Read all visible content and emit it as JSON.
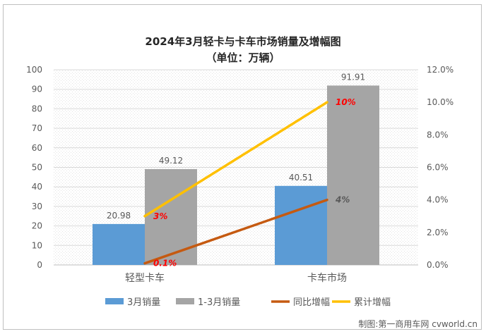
{
  "title_line1": "2024年3月轻卡与卡车市场销量及增幅图",
  "title_line2": "（单位：万辆）",
  "watermark": "制图:第一商用车网 cvworld.cn",
  "colors": {
    "march_sales": "#5b9bd5",
    "ytd_sales": "#a5a5a5",
    "yoy_growth": "#c55a11",
    "ytd_growth": "#ffc000",
    "growth_label": "#ff0000",
    "grid": "#d9d9d9",
    "axis_text": "#595959"
  },
  "chart_data": {
    "type": "bar",
    "categories": [
      "轻型卡车",
      "卡车市场"
    ],
    "bar_series": [
      {
        "name": "3月销量",
        "values": [
          20.98,
          40.51
        ],
        "labels": [
          "20.98",
          "40.51"
        ],
        "color_key": "march_sales"
      },
      {
        "name": "1-3月销量",
        "values": [
          49.12,
          91.91
        ],
        "labels": [
          "49.12",
          "91.91"
        ],
        "color_key": "ytd_sales"
      }
    ],
    "line_series": [
      {
        "name": "同比增幅",
        "values": [
          0.1,
          4
        ],
        "labels": [
          "0.1%",
          "4%"
        ],
        "color_key": "yoy_growth"
      },
      {
        "name": "累计增幅",
        "values": [
          3,
          10
        ],
        "labels": [
          "3%",
          "10%"
        ],
        "color_key": "ytd_growth"
      }
    ],
    "y_left": {
      "min": 0,
      "max": 100,
      "ticks": [
        "0",
        "10",
        "20",
        "30",
        "40",
        "50",
        "60",
        "70",
        "80",
        "90",
        "100"
      ]
    },
    "y_right": {
      "min": 0,
      "max": 12,
      "ticks": [
        "0.0%",
        "2.0%",
        "4.0%",
        "6.0%",
        "8.0%",
        "10.0%",
        "12.0%"
      ]
    },
    "legend": [
      "3月销量",
      "1-3月销量",
      "同比增幅",
      "累计增幅"
    ],
    "legend_position": "bottom",
    "grid": true
  }
}
